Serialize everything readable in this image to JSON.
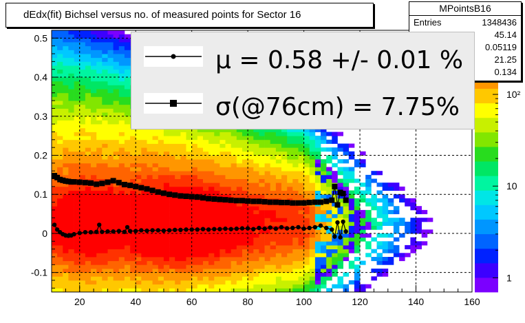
{
  "window": {
    "title": "dEdx(fit) Bichsel versus no. of measured points for Sector 16"
  },
  "stats": {
    "name": "MPointsB16",
    "rows": [
      {
        "label": "Entries",
        "value": "1348436"
      },
      {
        "label": "",
        "value": "45.14"
      },
      {
        "label": "",
        "value": "0.05119"
      },
      {
        "label": "",
        "value": "21.25"
      },
      {
        "label": "",
        "value": "0.134"
      }
    ]
  },
  "legend": {
    "entries": [
      {
        "marker": "circle",
        "text": "μ  =  0.58 +/-  0.01 %"
      },
      {
        "marker": "square",
        "text": "σ(@76cm) =  7.75%"
      }
    ]
  },
  "colors": {
    "frame": "#000000",
    "grid": "#000000",
    "markers": "#000000",
    "background": "#ffffff"
  },
  "chart_data": {
    "type": "heatmap",
    "title": "dEdx(fit) Bichsel versus no. of measured points for Sector 16",
    "xlim": [
      10,
      160
    ],
    "ylim": [
      -0.15,
      0.52
    ],
    "x_ticks": [
      20,
      40,
      60,
      80,
      100,
      120,
      140,
      160
    ],
    "y_ticks": [
      -0.1,
      0,
      0.1,
      0.2,
      0.3,
      0.4,
      0.5
    ],
    "grid": true,
    "colorbar": {
      "scale": "log",
      "min": 0.7,
      "max": 500,
      "ticks": [
        {
          "value": 1,
          "label": "1"
        },
        {
          "value": 10,
          "label": "10"
        },
        {
          "value": 100,
          "label": "10²"
        }
      ]
    },
    "colors": [
      "#7b00ff",
      "#3c00ff",
      "#0022ff",
      "#0064ff",
      "#0096ff",
      "#00c8ff",
      "#00e6e6",
      "#00f5a0",
      "#00e664",
      "#28dc1e",
      "#82e600",
      "#c8f000",
      "#ffff00",
      "#ffc800",
      "#ff9600",
      "#ff6400",
      "#ff3200",
      "#ff0000"
    ],
    "series": [
      {
        "name": "mean",
        "marker": "circle",
        "points": [
          [
            11,
            0.022
          ],
          [
            12,
            0.01
          ],
          [
            13,
            0.003
          ],
          [
            14,
            -0.002
          ],
          [
            15,
            -0.005
          ],
          [
            16,
            -0.006
          ],
          [
            17,
            -0.005
          ],
          [
            18,
            -0.002
          ],
          [
            20,
            0.001
          ],
          [
            22,
            0.003
          ],
          [
            24,
            0.003
          ],
          [
            26,
            0.004
          ],
          [
            27,
            0.022
          ],
          [
            28,
            0.004
          ],
          [
            30,
            0.005
          ],
          [
            32,
            0.005
          ],
          [
            34,
            0.006
          ],
          [
            36,
            0.004
          ],
          [
            37,
            0.016
          ],
          [
            38,
            0.006
          ],
          [
            40,
            0.006
          ],
          [
            42,
            0.008
          ],
          [
            44,
            0.007
          ],
          [
            46,
            0.008
          ],
          [
            48,
            0.008
          ],
          [
            50,
            0.007
          ],
          [
            52,
            0.008
          ],
          [
            54,
            0.009
          ],
          [
            56,
            0.009
          ],
          [
            58,
            0.01
          ],
          [
            60,
            0.01
          ],
          [
            62,
            0.01
          ],
          [
            64,
            0.011
          ],
          [
            66,
            0.01
          ],
          [
            68,
            0.011
          ],
          [
            70,
            0.011
          ],
          [
            72,
            0.012
          ],
          [
            74,
            0.011
          ],
          [
            76,
            0.012
          ],
          [
            78,
            0.013
          ],
          [
            80,
            0.013
          ],
          [
            82,
            0.011
          ],
          [
            84,
            0.014
          ],
          [
            86,
            0.012
          ],
          [
            88,
            0.015
          ],
          [
            90,
            0.012
          ],
          [
            92,
            0.016
          ],
          [
            94,
            0.013
          ],
          [
            96,
            0.014
          ],
          [
            98,
            0.016
          ],
          [
            100,
            0.012
          ],
          [
            102,
            0.014
          ],
          [
            104,
            0.016
          ],
          [
            106,
            0.02
          ],
          [
            108,
            0.014
          ],
          [
            110,
            0.01
          ],
          [
            111,
            -0.008
          ],
          [
            112,
            0.028
          ],
          [
            113,
            -0.01
          ],
          [
            114,
            0.03
          ],
          [
            115,
            0.005
          ]
        ]
      },
      {
        "name": "sigma",
        "marker": "square",
        "points": [
          [
            11,
            0.148
          ],
          [
            12,
            0.143
          ],
          [
            13,
            0.138
          ],
          [
            14,
            0.136
          ],
          [
            15,
            0.134
          ],
          [
            16,
            0.133
          ],
          [
            17,
            0.132
          ],
          [
            18,
            0.132
          ],
          [
            20,
            0.131
          ],
          [
            22,
            0.13
          ],
          [
            24,
            0.129
          ],
          [
            26,
            0.126
          ],
          [
            28,
            0.128
          ],
          [
            30,
            0.131
          ],
          [
            32,
            0.135
          ],
          [
            34,
            0.13
          ],
          [
            36,
            0.125
          ],
          [
            38,
            0.123
          ],
          [
            40,
            0.12
          ],
          [
            42,
            0.117
          ],
          [
            44,
            0.114
          ],
          [
            46,
            0.11
          ],
          [
            48,
            0.106
          ],
          [
            50,
            0.103
          ],
          [
            52,
            0.1
          ],
          [
            54,
            0.098
          ],
          [
            56,
            0.096
          ],
          [
            58,
            0.095
          ],
          [
            60,
            0.094
          ],
          [
            62,
            0.093
          ],
          [
            64,
            0.091
          ],
          [
            66,
            0.089
          ],
          [
            68,
            0.088
          ],
          [
            70,
            0.087
          ],
          [
            72,
            0.086
          ],
          [
            74,
            0.085
          ],
          [
            76,
            0.084
          ],
          [
            78,
            0.084
          ],
          [
            80,
            0.083
          ],
          [
            82,
            0.082
          ],
          [
            84,
            0.082
          ],
          [
            86,
            0.081
          ],
          [
            88,
            0.08
          ],
          [
            90,
            0.08
          ],
          [
            92,
            0.079
          ],
          [
            94,
            0.079
          ],
          [
            96,
            0.078
          ],
          [
            98,
            0.078
          ],
          [
            100,
            0.078
          ],
          [
            102,
            0.079
          ],
          [
            104,
            0.08
          ],
          [
            106,
            0.08
          ],
          [
            108,
            0.082
          ],
          [
            110,
            0.085
          ],
          [
            111,
            0.12
          ],
          [
            112,
            0.073
          ],
          [
            113,
            0.105
          ],
          [
            114,
            0.102
          ],
          [
            115,
            0.085
          ]
        ]
      }
    ]
  }
}
